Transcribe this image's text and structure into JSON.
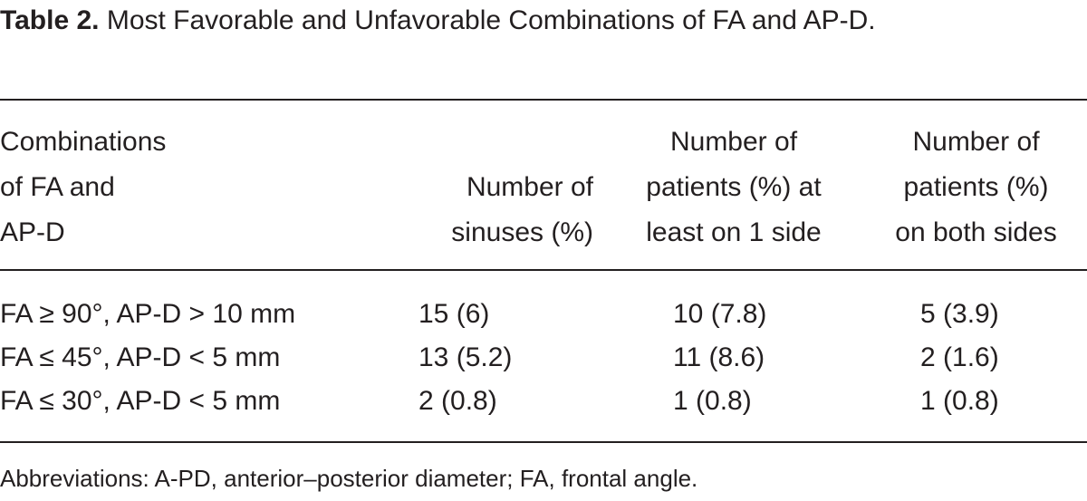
{
  "caption": {
    "label": "Table 2.",
    "text": "Most Favorable and Unfavorable Combinations of FA and AP-D."
  },
  "table": {
    "columns": [
      [
        "Combinations",
        "of FA and",
        "AP-D"
      ],
      [
        "Number of",
        "sinuses (%)"
      ],
      [
        "Number of",
        "patients (%) at",
        "least on 1 side"
      ],
      [
        "Number of",
        "patients (%)",
        "on both sides"
      ]
    ],
    "rows": [
      [
        "FA ≥ 90°, AP-D > 10 mm",
        "15 (6)",
        "10 (7.8)",
        "5 (3.9)"
      ],
      [
        "FA ≤ 45°, AP-D < 5 mm",
        "13 (5.2)",
        "11 (8.6)",
        "2 (1.6)"
      ],
      [
        "FA ≤ 30°, AP-D < 5 mm",
        "2 (0.8)",
        "1 (0.8)",
        "1 (0.8)"
      ]
    ]
  },
  "footnote": "Abbreviations: A-PD, anterior–posterior diameter; FA, frontal angle."
}
